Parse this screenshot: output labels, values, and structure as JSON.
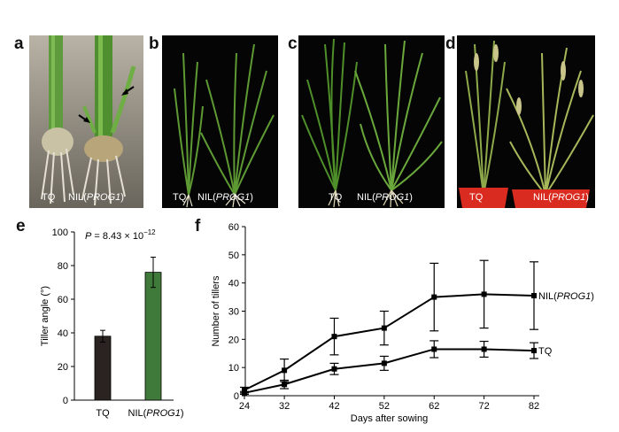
{
  "panels": {
    "a": {
      "letter": "a",
      "label_left": "TQ",
      "label_right_prefix": "NIL(",
      "label_right_gene": "PROG1",
      "label_right_suffix": ")"
    },
    "b": {
      "letter": "b",
      "label_left": "TQ",
      "label_right_prefix": "NIL(",
      "label_right_gene": "PROG1",
      "label_right_suffix": ")"
    },
    "c": {
      "letter": "c",
      "label_left": "TQ",
      "label_right_prefix": "NIL(",
      "label_right_gene": "PROG1",
      "label_right_suffix": ")"
    },
    "d": {
      "letter": "d",
      "label_left": "TQ",
      "label_right_prefix": "NIL(",
      "label_right_gene": "PROG1",
      "label_right_suffix": ")"
    },
    "e": {
      "letter": "e"
    },
    "f": {
      "letter": "f"
    }
  },
  "chart_data": [
    {
      "type": "bar",
      "panel": "e",
      "categories": [
        "TQ",
        "NIL(PROG1)"
      ],
      "values": [
        38,
        76
      ],
      "errors": [
        3.5,
        9
      ],
      "bar_colors": [
        "#2a2322",
        "#3f7a3a"
      ],
      "ylabel": "Tiller angle (°)",
      "ylim": [
        0,
        100
      ],
      "yticks": [
        0,
        20,
        40,
        60,
        80,
        100
      ],
      "annotation": "P = 8.43 × 10−12"
    },
    {
      "type": "line",
      "panel": "f",
      "x": [
        24,
        32,
        42,
        52,
        62,
        72,
        82
      ],
      "series": [
        {
          "name": "NIL(PROG1)",
          "values": [
            2,
            9,
            21,
            24,
            35,
            36,
            35.5
          ],
          "errors": [
            1,
            4,
            6.5,
            6,
            12,
            12,
            12
          ]
        },
        {
          "name": "TQ",
          "values": [
            1,
            4,
            9.5,
            11.5,
            16.5,
            16.5,
            16
          ],
          "errors": [
            0.5,
            1.5,
            2,
            2.5,
            3,
            2.8,
            2.8
          ]
        }
      ],
      "xlabel": "Days after sowing",
      "ylabel": "Number of tillers",
      "xlim": [
        24,
        82
      ],
      "ylim": [
        0,
        60
      ],
      "yticks": [
        0,
        10,
        20,
        30,
        40,
        50,
        60
      ],
      "xticks": [
        24,
        32,
        42,
        52,
        62,
        72,
        82
      ]
    }
  ]
}
